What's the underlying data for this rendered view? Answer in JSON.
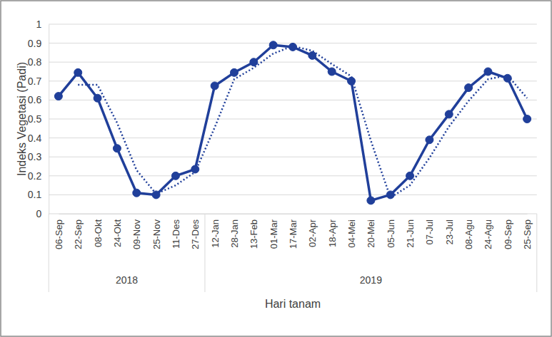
{
  "chart_data": {
    "type": "line",
    "y_label": "Indeks Vegetasi (Padi)",
    "x_label": "Hari tanam",
    "categories": [
      "06-Sep",
      "22-Sep",
      "08-Okt",
      "24-Okt",
      "09-Nov",
      "25-Nov",
      "11-Des",
      "27-Des",
      "12-Jan",
      "28-Jan",
      "13-Feb",
      "01-Mar",
      "17-Mar",
      "02-Apr",
      "18-Apr",
      "04-Mei",
      "20-Mei",
      "05-Jun",
      "21-Jun",
      "07-Jul",
      "23-Jul",
      "08-Agu",
      "24-Agu",
      "09-Sep",
      "25-Sep"
    ],
    "groups": [
      {
        "label": "2018",
        "size": 8
      },
      {
        "label": "2019",
        "size": 17
      }
    ],
    "series": [
      {
        "color": "#203f9a",
        "marker": "circle",
        "line_style": "solid",
        "values": [
          0.62,
          0.745,
          0.61,
          0.345,
          0.11,
          0.1,
          0.2,
          0.235,
          0.675,
          0.745,
          0.8,
          0.89,
          0.88,
          0.835,
          0.75,
          0.7,
          0.07,
          0.1,
          0.2,
          0.39,
          0.525,
          0.665,
          0.75,
          0.715,
          0.5
        ]
      },
      {
        "color": "#203f9a",
        "marker": "none",
        "line_style": "dotted",
        "values": [
          null,
          0.68,
          0.68,
          0.48,
          0.23,
          0.105,
          0.15,
          0.22,
          0.455,
          0.71,
          0.77,
          0.845,
          0.885,
          0.86,
          0.79,
          0.725,
          0.385,
          0.085,
          0.15,
          0.295,
          0.46,
          0.595,
          0.71,
          0.73,
          0.61
        ]
      }
    ],
    "ylim": [
      0,
      1
    ],
    "yticks": [
      0,
      0.1,
      0.2,
      0.3,
      0.4,
      0.5,
      0.6,
      0.7,
      0.8,
      0.9,
      1
    ],
    "grid": true
  }
}
